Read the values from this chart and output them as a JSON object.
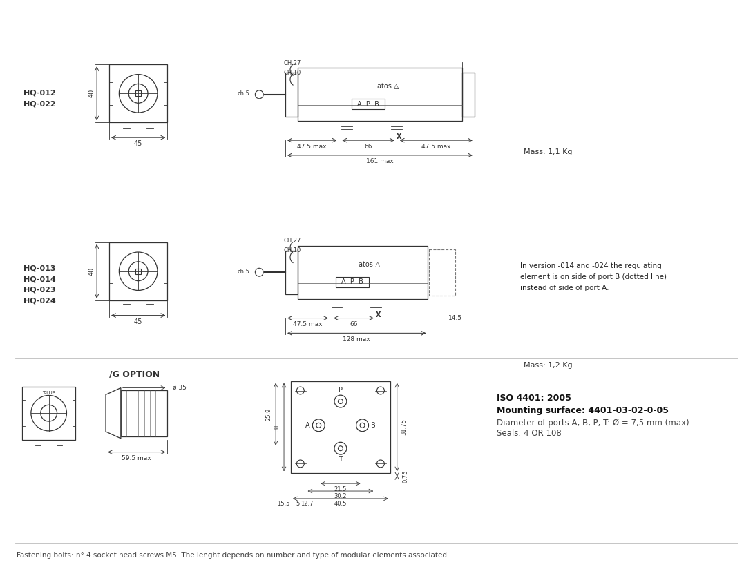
{
  "bg_color": "#ffffff",
  "text_color": "#333333",
  "line_color": "#333333",
  "section1_labels": [
    "HQ-012",
    "HQ-022"
  ],
  "section2_labels": [
    "HQ-013",
    "HQ-014",
    "HQ-023",
    "HQ-024"
  ],
  "section1_mass": "Mass: 1,1 Kg",
  "section2_mass": "Mass: 1,2 Kg",
  "section2_note1": "In version -014 and -024 the regulating",
  "section2_note2": "element is on side of port B (dotted line)",
  "section2_note3": "instead of side of port A.",
  "g_option_label": "/G OPTION",
  "iso_line1": "ISO 4401: 2005",
  "iso_line2": "Mounting surface: 4401-03-02-0-05",
  "iso_line3": "Diameter of ports A, B, P, T: Ø = 7,5 mm (max)",
  "iso_line4": "Seals: 4 OR 108",
  "footer": "Fastening bolts: n° 4 socket head screws M5. The lenght depends on number and type of modular elements associated."
}
